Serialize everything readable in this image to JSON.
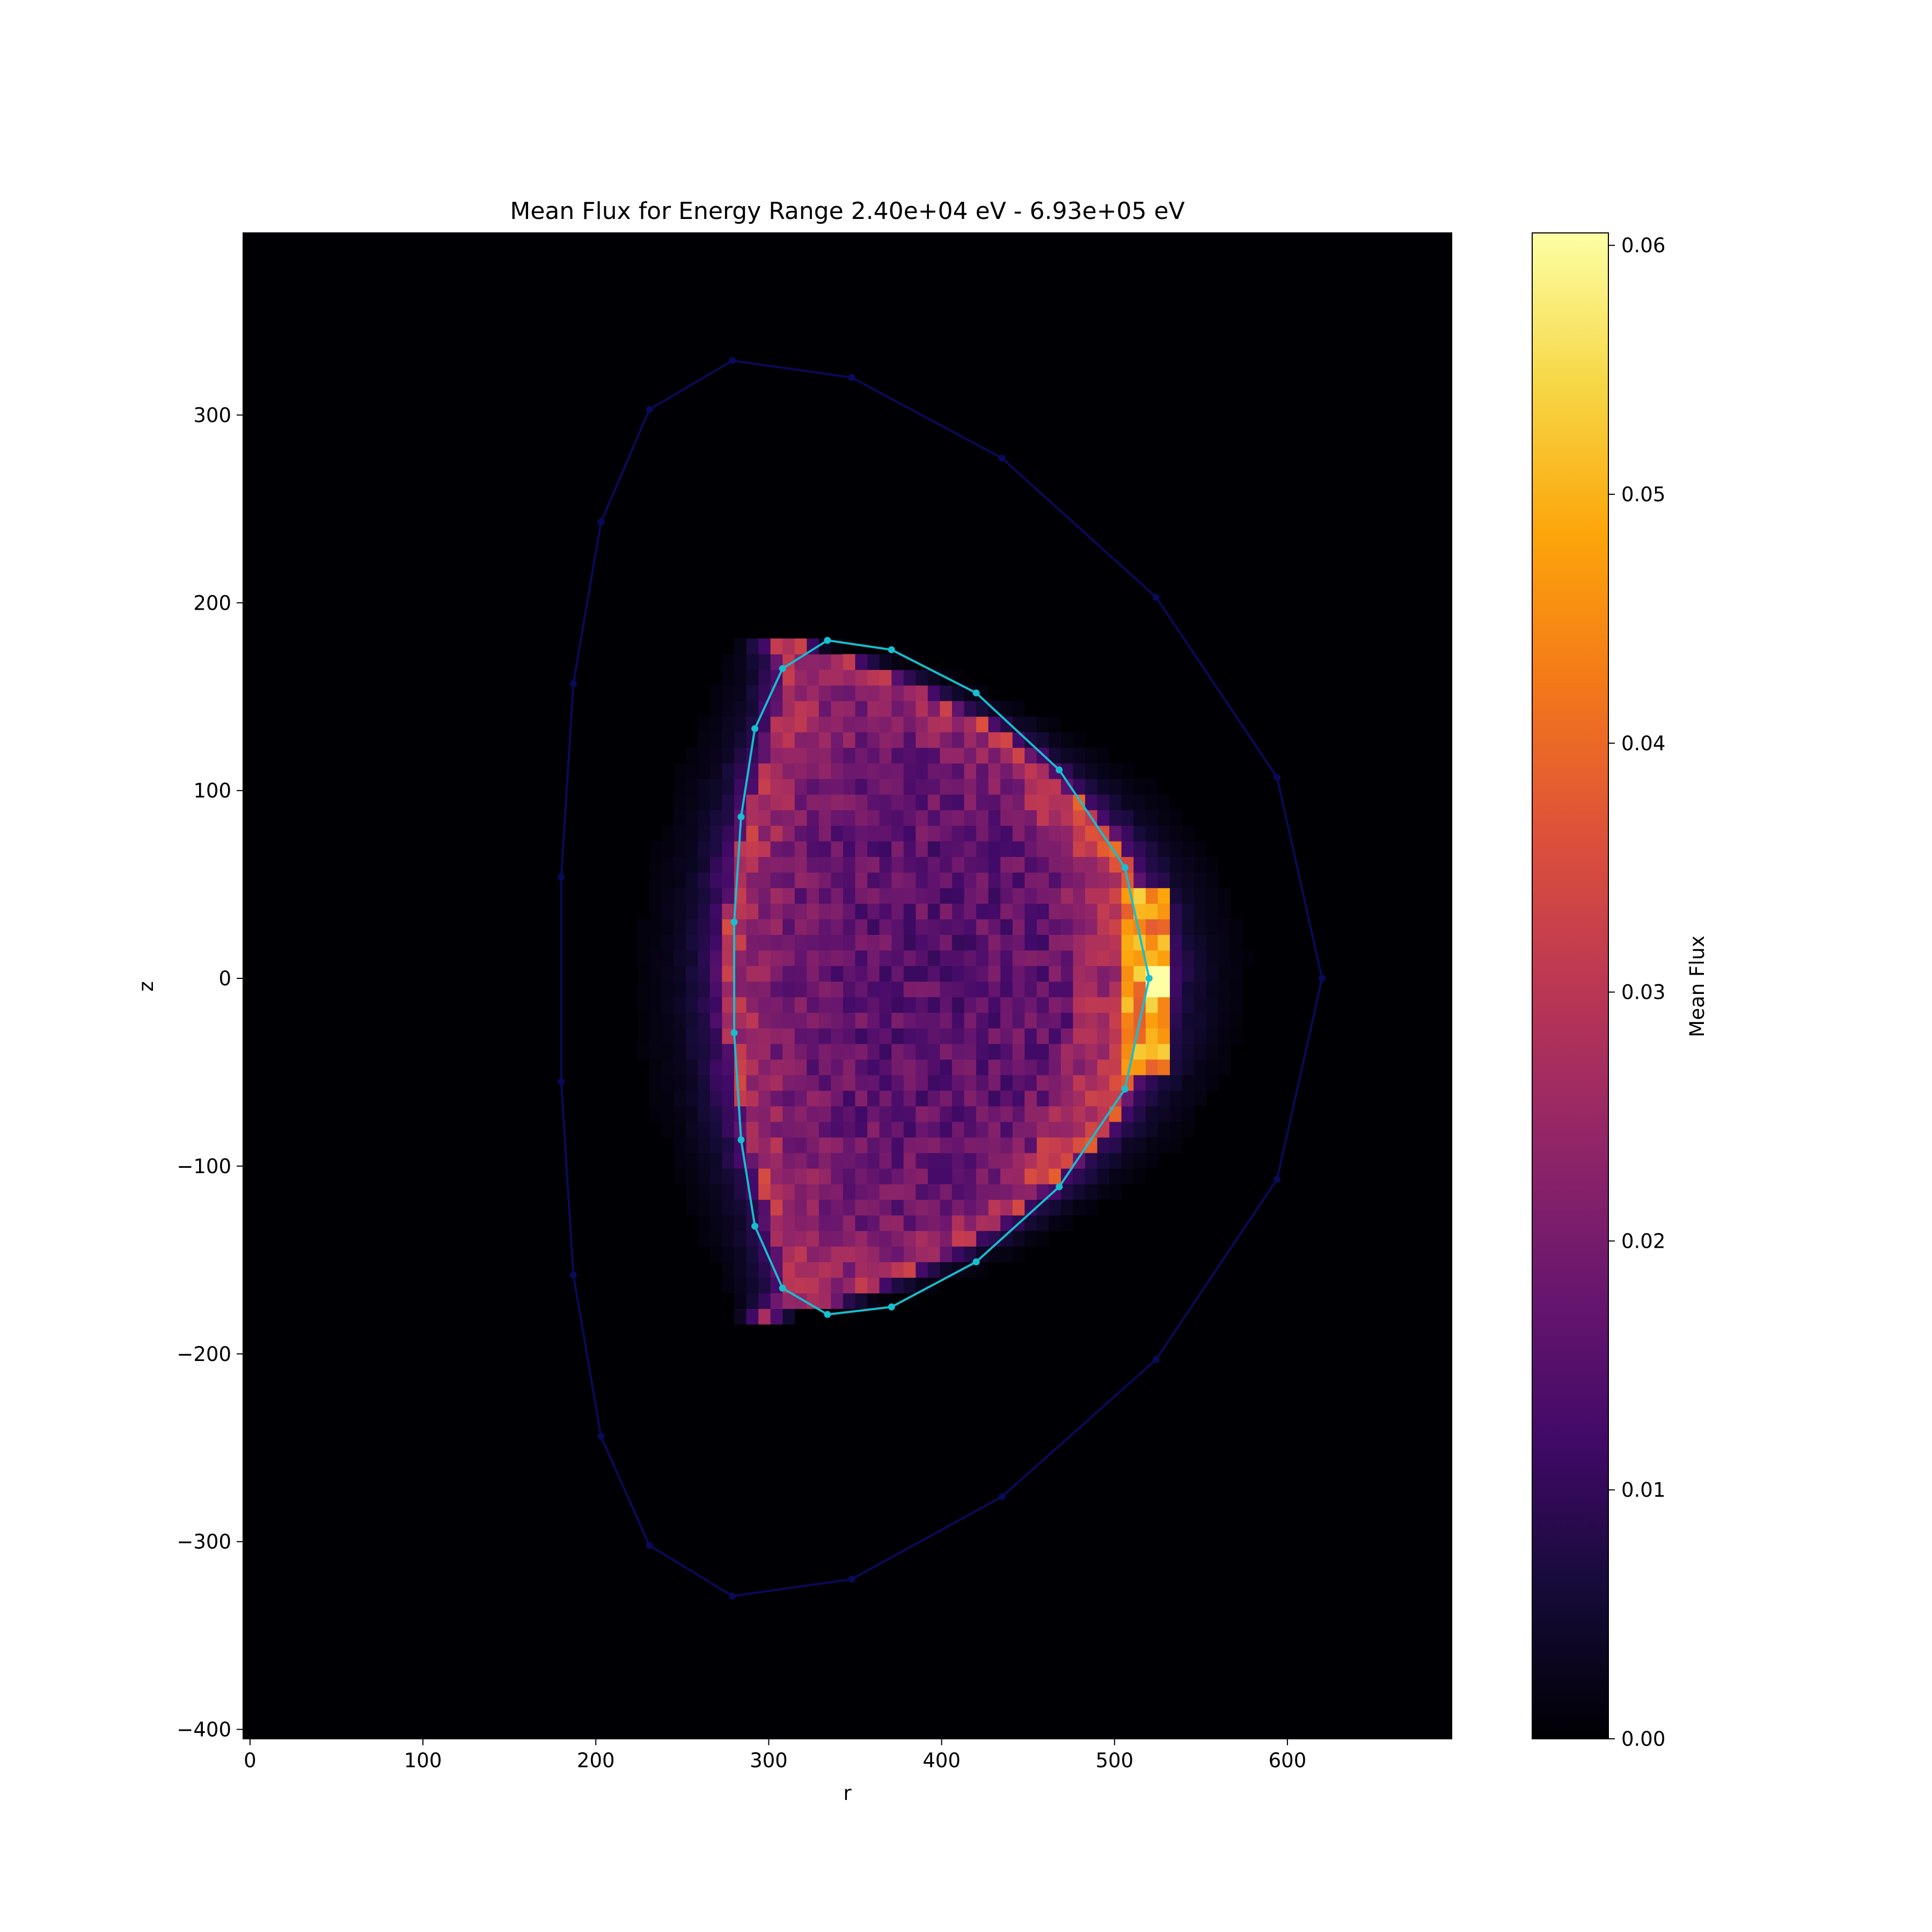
{
  "chart_data": {
    "type": "heatmap",
    "title": "Mean Flux for Energy Range 2.40e+04 eV - 6.93e+05 eV",
    "xlabel": "r",
    "ylabel": "z",
    "colorbar_label": "Mean Flux",
    "colormap": "inferno",
    "colorbar_ticks": [
      "0.00",
      "0.01",
      "0.02",
      "0.03",
      "0.04",
      "0.05",
      "0.06"
    ],
    "colorbar_range": [
      0,
      0.0605
    ],
    "x_ticks": [
      "0",
      "100",
      "200",
      "300",
      "400",
      "500",
      "600"
    ],
    "y_ticks": [
      "300",
      "200",
      "100",
      "0",
      "−100",
      "−200",
      "−300",
      "−400"
    ],
    "xlim": [
      -4,
      695
    ],
    "ylim": [
      -405,
      397
    ],
    "grid": false,
    "bin_size": [
      7,
      8.3
    ],
    "flux_distribution": {
      "description_shape": "D-shaped plasma cross section",
      "center": [
        400,
        0
      ],
      "core_level": 0.016,
      "edge_level": 0.031,
      "peak_point": [
        523,
        -2
      ],
      "peak_value": 0.0605
    },
    "inner_boundary": {
      "color": "#17becf",
      "points": [
        [
          520,
          0
        ],
        [
          506,
          59
        ],
        [
          468,
          111
        ],
        [
          420,
          152
        ],
        [
          371,
          175
        ],
        [
          334,
          180
        ],
        [
          308,
          165
        ],
        [
          292,
          133
        ],
        [
          284,
          86
        ],
        [
          280,
          30
        ],
        [
          280,
          -29
        ],
        [
          284,
          -86
        ],
        [
          292,
          -132
        ],
        [
          308,
          -165
        ],
        [
          334,
          -179
        ],
        [
          371,
          -175
        ],
        [
          420,
          -151
        ],
        [
          468,
          -111
        ],
        [
          506,
          -59
        ],
        [
          520,
          0
        ]
      ]
    },
    "outer_boundary": {
      "color": "#0a0a5a",
      "points": [
        [
          620,
          0
        ],
        [
          594,
          107
        ],
        [
          524,
          203
        ],
        [
          435,
          277
        ],
        [
          348,
          320
        ],
        [
          279,
          329
        ],
        [
          231,
          303
        ],
        [
          203,
          243
        ],
        [
          187,
          157
        ],
        [
          180,
          54
        ],
        [
          180,
          -55
        ],
        [
          187,
          -158
        ],
        [
          203,
          -244
        ],
        [
          231,
          -302
        ],
        [
          279,
          -329
        ],
        [
          348,
          -320
        ],
        [
          435,
          -276
        ],
        [
          524,
          -203
        ],
        [
          594,
          -107
        ],
        [
          620,
          0
        ]
      ]
    }
  }
}
